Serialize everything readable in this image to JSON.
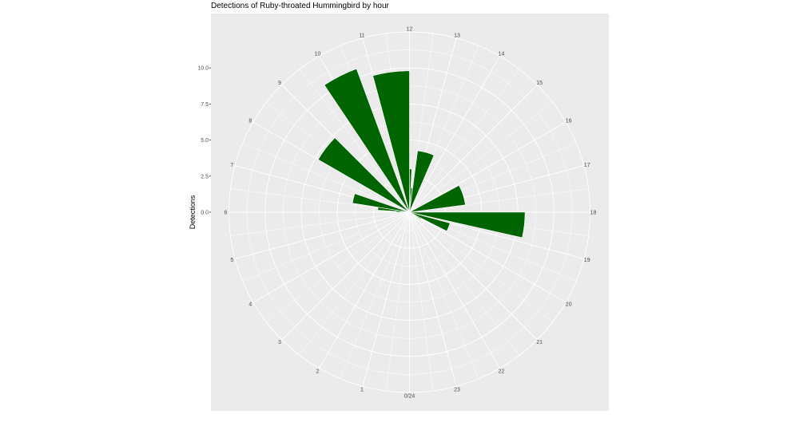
{
  "chart_data": {
    "type": "bar",
    "polar": true,
    "title": "Detections of Ruby-throated Hummingbird by hour",
    "xlabel": "",
    "ylabel": "Detections",
    "ylim": [
      0,
      12.5
    ],
    "yticks": [
      "0.0",
      "2.5",
      "5.0",
      "7.5",
      "10.0"
    ],
    "hour_labels": [
      "0/24",
      "1",
      "2",
      "3",
      "4",
      "5",
      "6",
      "7",
      "8",
      "9",
      "10",
      "11",
      "12",
      "13",
      "14",
      "15",
      "16",
      "17",
      "18",
      "19",
      "20",
      "21",
      "22",
      "23"
    ],
    "bar_color": "#006400",
    "panel_color": "#ebebeb",
    "grid": true,
    "bars": [
      {
        "start": 5.9,
        "end": 6.25,
        "value": 0.9
      },
      {
        "start": 6.25,
        "end": 6.6,
        "value": 2.2
      },
      {
        "start": 6.6,
        "end": 7.25,
        "value": 4.0
      },
      {
        "start": 8.0,
        "end": 9.0,
        "value": 7.3
      },
      {
        "start": 9.75,
        "end": 10.65,
        "value": 10.6
      },
      {
        "start": 11.0,
        "end": 12.0,
        "value": 9.8
      },
      {
        "start": 12.0,
        "end": 12.2,
        "value": 3.0
      },
      {
        "start": 12.2,
        "end": 12.45,
        "value": 1.7
      },
      {
        "start": 12.5,
        "end": 13.55,
        "value": 4.3
      },
      {
        "start": 16.1,
        "end": 17.5,
        "value": 3.9
      },
      {
        "start": 18.0,
        "end": 18.85,
        "value": 8.0
      },
      {
        "start": 19.0,
        "end": 19.8,
        "value": 2.9
      },
      {
        "start": 19.8,
        "end": 20.1,
        "value": 0.9
      }
    ]
  }
}
